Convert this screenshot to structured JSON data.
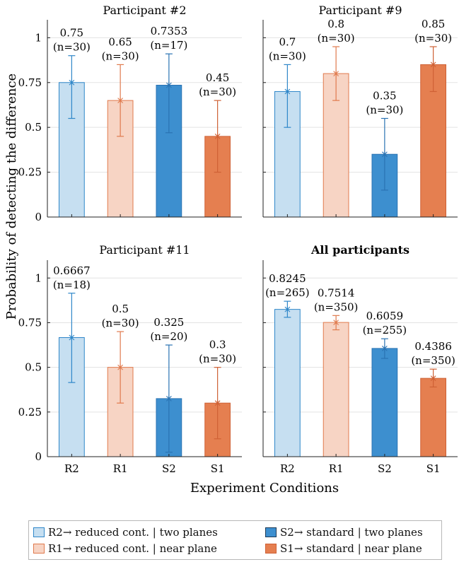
{
  "figure": {
    "ylabel": "Probability of detecting the difference",
    "xlabel": "Experiment Conditions"
  },
  "colors": {
    "R2": {
      "fill": "#c6dff1",
      "stroke": "#2f87c9"
    },
    "R1": {
      "fill": "#f7d4c4",
      "stroke": "#e07a4d"
    },
    "S2": {
      "fill": "#3d8fcf",
      "stroke": "#2a73b3"
    },
    "S1": {
      "fill": "#e57f50",
      "stroke": "#cf6135"
    },
    "grid": "#e3e3e3",
    "axis": "#222222"
  },
  "legend": {
    "items": [
      {
        "key": "R2",
        "text": "R2→ reduced cont. | two planes"
      },
      {
        "key": "R1",
        "text": "R1→ reduced cont. | near plane"
      },
      {
        "key": "S2",
        "text": "S2→ standard | two planes"
      },
      {
        "key": "S1",
        "text": "S1→ standard | near plane"
      }
    ]
  },
  "chart_data": [
    {
      "type": "bar",
      "title": "Participant #2",
      "bold": false,
      "categories": [
        "R2",
        "R1",
        "S2",
        "S1"
      ],
      "values": [
        0.75,
        0.65,
        0.7353,
        0.45
      ],
      "error_low": [
        0.55,
        0.45,
        0.47,
        0.25
      ],
      "error_high": [
        0.9,
        0.85,
        0.91,
        0.65
      ],
      "value_labels": [
        "0.75",
        "0.65",
        "0.7353",
        "0.45"
      ],
      "n_labels": [
        "(n=30)",
        "(n=30)",
        "(n=17)",
        "(n=30)"
      ],
      "ylim": [
        0,
        1.1
      ],
      "yticks": [
        "0",
        "0.25",
        "0.5",
        "0.75",
        "1"
      ],
      "show_yticklabels": true,
      "show_xticklabels": false
    },
    {
      "type": "bar",
      "title": "Participant #9",
      "bold": false,
      "categories": [
        "R2",
        "R1",
        "S2",
        "S1"
      ],
      "values": [
        0.7,
        0.8,
        0.35,
        0.85
      ],
      "error_low": [
        0.5,
        0.65,
        0.15,
        0.7
      ],
      "error_high": [
        0.85,
        0.95,
        0.55,
        0.95
      ],
      "value_labels": [
        "0.7",
        "0.8",
        "0.35",
        "0.85"
      ],
      "n_labels": [
        "(n=30)",
        "(n=30)",
        "(n=30)",
        "(n=30)"
      ],
      "ylim": [
        0,
        1.1
      ],
      "yticks": [
        "0",
        "0.25",
        "0.5",
        "0.75",
        "1"
      ],
      "show_yticklabels": false,
      "show_xticklabels": false
    },
    {
      "type": "bar",
      "title": "Participant #11",
      "bold": false,
      "categories": [
        "R2",
        "R1",
        "S2",
        "S1"
      ],
      "values": [
        0.6667,
        0.5,
        0.325,
        0.3
      ],
      "error_low": [
        0.415,
        0.3,
        0.025,
        0.1
      ],
      "error_high": [
        0.915,
        0.7,
        0.625,
        0.5
      ],
      "value_labels": [
        "0.6667",
        "0.5",
        "0.325",
        "0.3"
      ],
      "n_labels": [
        "(n=18)",
        "(n=30)",
        "(n=20)",
        "(n=30)"
      ],
      "ylim": [
        0,
        1.1
      ],
      "yticks": [
        "0",
        "0.25",
        "0.5",
        "0.75",
        "1"
      ],
      "show_yticklabels": true,
      "show_xticklabels": true
    },
    {
      "type": "bar",
      "title": "All participants",
      "bold": true,
      "categories": [
        "R2",
        "R1",
        "S2",
        "S1"
      ],
      "values": [
        0.8245,
        0.7514,
        0.6059,
        0.4386
      ],
      "error_low": [
        0.78,
        0.71,
        0.55,
        0.39
      ],
      "error_high": [
        0.87,
        0.79,
        0.66,
        0.49
      ],
      "value_labels": [
        "0.8245",
        "0.7514",
        "0.6059",
        "0.4386"
      ],
      "n_labels": [
        "(n=265)",
        "(n=350)",
        "(n=255)",
        "(n=350)"
      ],
      "ylim": [
        0,
        1.1
      ],
      "yticks": [
        "0",
        "0.25",
        "0.5",
        "0.75",
        "1"
      ],
      "show_yticklabels": false,
      "show_xticklabels": true
    }
  ]
}
